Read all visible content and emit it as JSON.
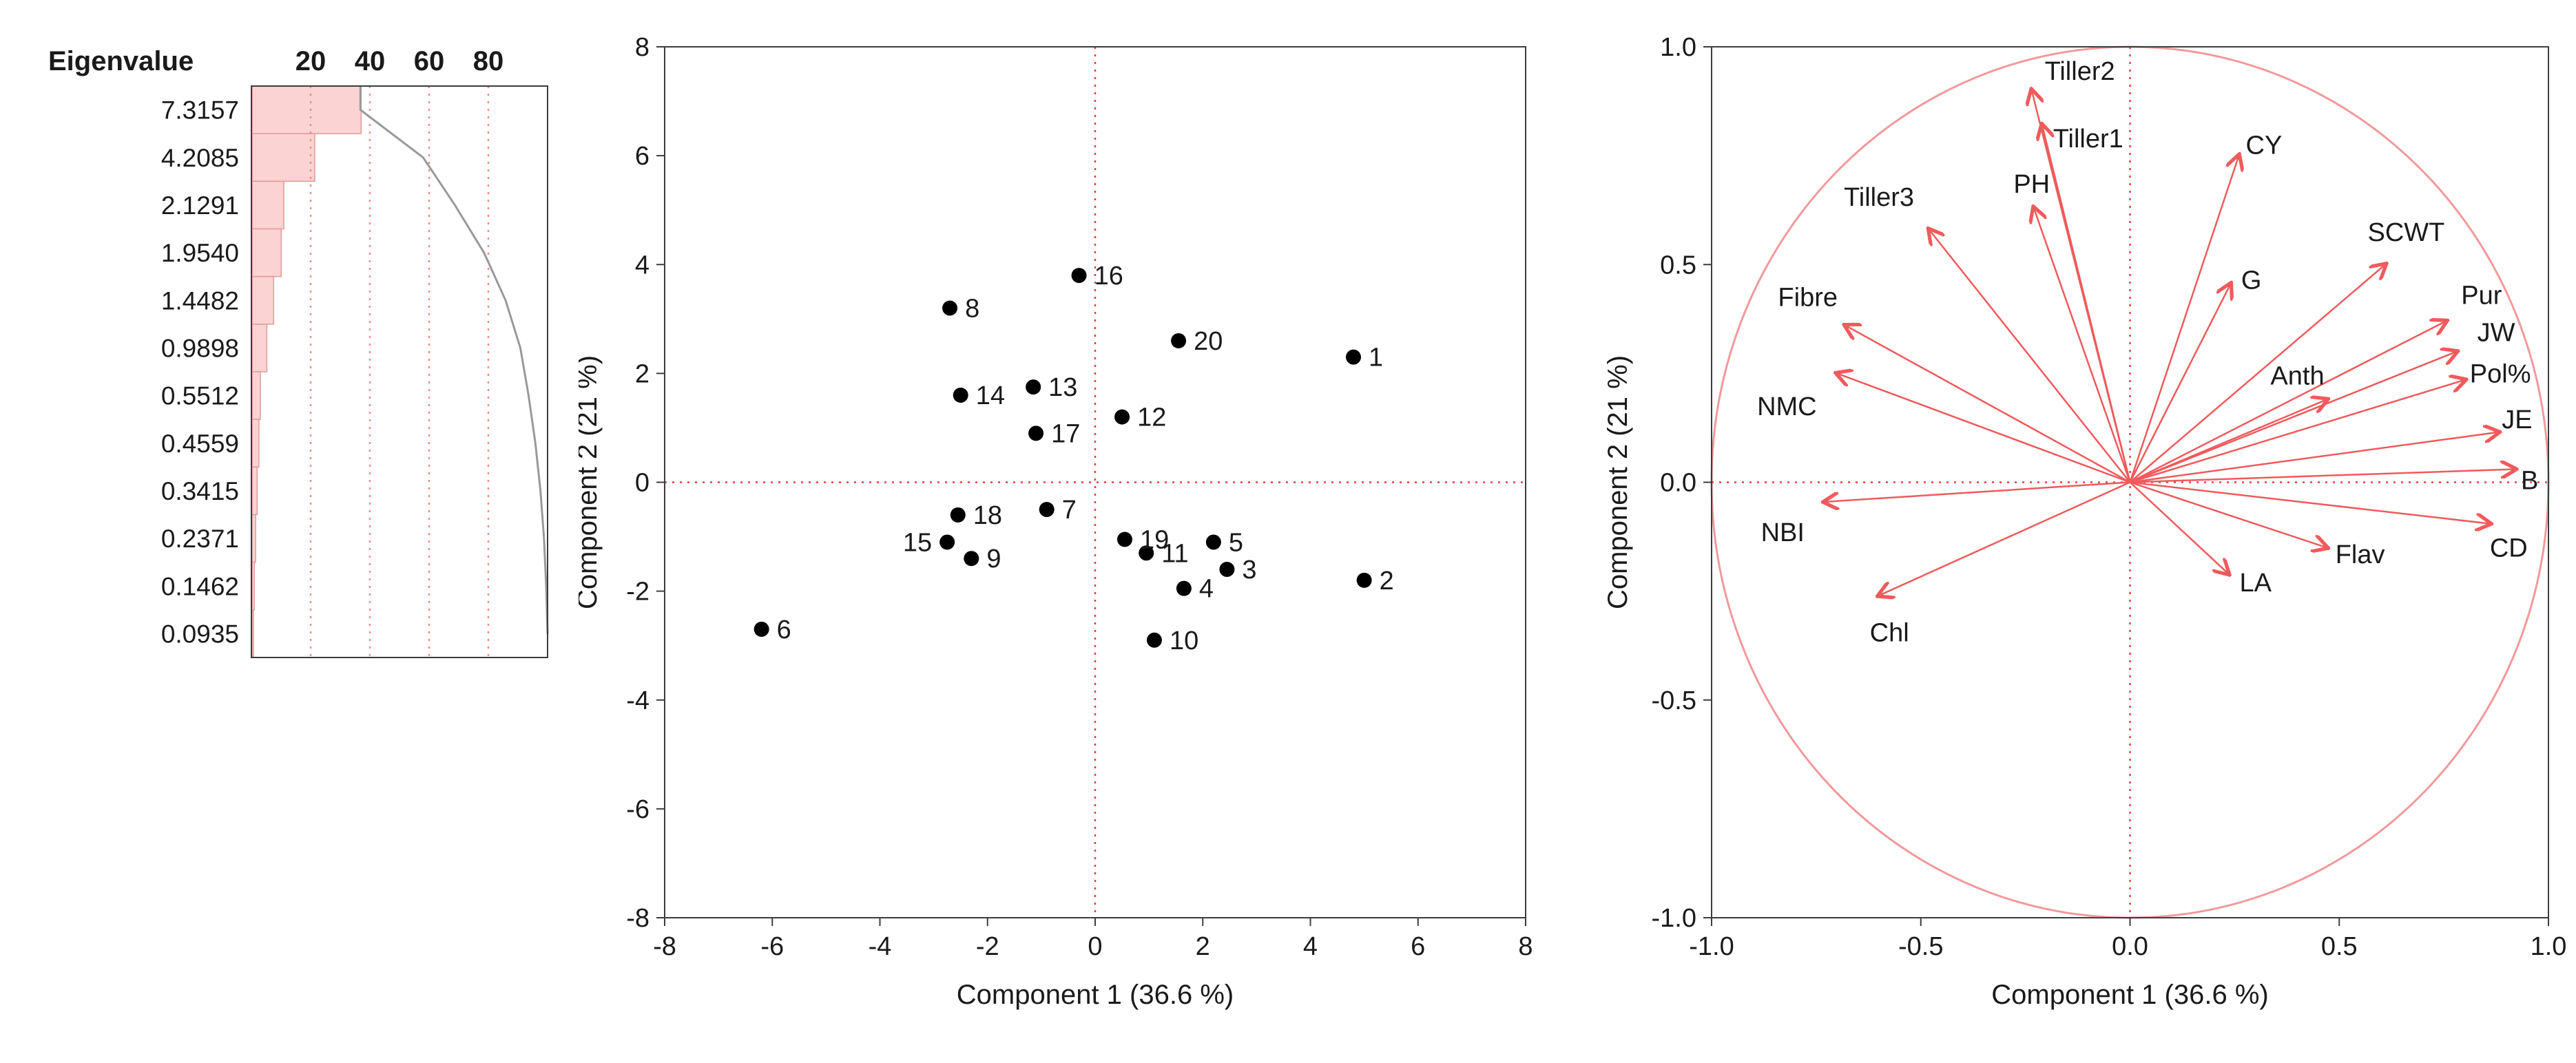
{
  "figure": {
    "background": "#ffffff",
    "frame_color": "#3c3c3c",
    "text_color": "#1a1a1a"
  },
  "chart_data": [
    {
      "id": "scree",
      "type": "bar",
      "title": "Eigenvalue",
      "orientation": "horizontal",
      "value_labels": [
        "7.3157",
        "4.2085",
        "2.1291",
        "1.9540",
        "1.4482",
        "0.9898",
        "0.5512",
        "0.4559",
        "0.3415",
        "0.2371",
        "0.1462",
        "0.0935"
      ],
      "values": [
        7.3157,
        4.2085,
        2.1291,
        1.954,
        1.4482,
        0.9898,
        0.5512,
        0.4559,
        0.3415,
        0.2371,
        0.1462,
        0.0935
      ],
      "percent_ticks": [
        20,
        40,
        60,
        80
      ],
      "percent_range": [
        0,
        100
      ],
      "cumulative_curve": true,
      "bar_color": "#fbd3d3",
      "bar_edge_color": "#e09a9a",
      "grid_color": "#ee8c8c",
      "curve_color": "#999999"
    },
    {
      "id": "scores",
      "type": "scatter",
      "xlabel": "Component 1  (36.6 %)",
      "ylabel": "Component 2  (21 %)",
      "xlim": [
        -8,
        8
      ],
      "ylim": [
        -8,
        8
      ],
      "xticks": [
        "-8",
        "-6",
        "-4",
        "-2",
        "0",
        "2",
        "4",
        "6",
        "8"
      ],
      "yticks": [
        "8",
        "6",
        "4",
        "2",
        "0",
        "-2",
        "-4",
        "-6",
        "-8"
      ],
      "grid": false,
      "refline_color": "#e73b47",
      "point_color": "#000000",
      "points": [
        {
          "label": "1",
          "x": 4.8,
          "y": 2.3,
          "side": "right"
        },
        {
          "label": "2",
          "x": 5.0,
          "y": -1.8,
          "side": "right"
        },
        {
          "label": "3",
          "x": 2.45,
          "y": -1.6,
          "side": "right"
        },
        {
          "label": "4",
          "x": 1.65,
          "y": -1.95,
          "side": "right"
        },
        {
          "label": "5",
          "x": 2.2,
          "y": -1.1,
          "side": "right"
        },
        {
          "label": "6",
          "x": -6.2,
          "y": -2.7,
          "side": "right"
        },
        {
          "label": "7",
          "x": -0.9,
          "y": -0.5,
          "side": "right"
        },
        {
          "label": "8",
          "x": -2.7,
          "y": 3.2,
          "side": "right"
        },
        {
          "label": "9",
          "x": -2.3,
          "y": -1.4,
          "side": "right"
        },
        {
          "label": "10",
          "x": 1.1,
          "y": -2.9,
          "side": "right"
        },
        {
          "label": "11",
          "x": 0.95,
          "y": -1.3,
          "side": "right"
        },
        {
          "label": "12",
          "x": 0.5,
          "y": 1.2,
          "side": "right"
        },
        {
          "label": "13",
          "x": -1.15,
          "y": 1.75,
          "side": "right"
        },
        {
          "label": "14",
          "x": -2.5,
          "y": 1.6,
          "side": "right"
        },
        {
          "label": "15",
          "x": -2.75,
          "y": -1.1,
          "side": "left"
        },
        {
          "label": "16",
          "x": -0.3,
          "y": 3.8,
          "side": "right"
        },
        {
          "label": "17",
          "x": -1.1,
          "y": 0.9,
          "side": "right"
        },
        {
          "label": "18",
          "x": -2.55,
          "y": -0.6,
          "side": "right"
        },
        {
          "label": "19",
          "x": 0.55,
          "y": -1.05,
          "side": "right"
        },
        {
          "label": "20",
          "x": 1.55,
          "y": 2.6,
          "side": "right"
        }
      ]
    },
    {
      "id": "loadings",
      "type": "scatter",
      "xlabel": "Component 1  (36.6 %)",
      "ylabel": "Component 2  (21 %)",
      "xlim": [
        -1,
        1
      ],
      "ylim": [
        -1,
        1
      ],
      "xticks": [
        "-1.0",
        "-0.5",
        "0.0",
        "0.5",
        "1.0"
      ],
      "yticks": [
        "1.0",
        "0.5",
        "0.0",
        "-0.5",
        "-1.0"
      ],
      "unit_circle": true,
      "circle_color": "#f2999b",
      "arrow_color": "#ef5a5c",
      "refline_color": "#e73b47",
      "label_color": "#262626",
      "vectors": [
        {
          "label": "Tiller2",
          "x": -0.235,
          "y": 0.9,
          "label_x": -0.12,
          "label_y": 0.945
        },
        {
          "label": "Tiller1",
          "x": -0.21,
          "y": 0.82,
          "label_x": -0.1,
          "label_y": 0.79
        },
        {
          "label": "CY",
          "x": 0.26,
          "y": 0.75,
          "label_x": 0.32,
          "label_y": 0.775
        },
        {
          "label": "PH",
          "x": -0.23,
          "y": 0.63,
          "label_x": -0.235,
          "label_y": 0.685
        },
        {
          "label": "Tiller3",
          "x": -0.48,
          "y": 0.58,
          "label_x": -0.6,
          "label_y": 0.655
        },
        {
          "label": "SCWT",
          "x": 0.61,
          "y": 0.5,
          "label_x": 0.66,
          "label_y": 0.575
        },
        {
          "label": "G",
          "x": 0.24,
          "y": 0.455,
          "label_x": 0.29,
          "label_y": 0.465
        },
        {
          "label": "Fibre",
          "x": -0.68,
          "y": 0.36,
          "label_x": -0.77,
          "label_y": 0.425
        },
        {
          "label": "Pur",
          "x": 0.755,
          "y": 0.37,
          "label_x": 0.84,
          "label_y": 0.43
        },
        {
          "label": "JW",
          "x": 0.78,
          "y": 0.3,
          "label_x": 0.875,
          "label_y": 0.345
        },
        {
          "label": "Anth",
          "x": 0.47,
          "y": 0.19,
          "label_x": 0.4,
          "label_y": 0.245
        },
        {
          "label": "Pol%",
          "x": 0.8,
          "y": 0.235,
          "label_x": 0.885,
          "label_y": 0.25
        },
        {
          "label": "NMC",
          "x": -0.7,
          "y": 0.25,
          "label_x": -0.82,
          "label_y": 0.175
        },
        {
          "label": "JE",
          "x": 0.88,
          "y": 0.115,
          "label_x": 0.925,
          "label_y": 0.145
        },
        {
          "label": "B",
          "x": 0.92,
          "y": 0.03,
          "label_x": 0.955,
          "label_y": 0.005
        },
        {
          "label": "NBI",
          "x": -0.73,
          "y": -0.045,
          "label_x": -0.83,
          "label_y": -0.115
        },
        {
          "label": "CD",
          "x": 0.86,
          "y": -0.095,
          "label_x": 0.905,
          "label_y": -0.15
        },
        {
          "label": "Flav",
          "x": 0.47,
          "y": -0.15,
          "label_x": 0.55,
          "label_y": -0.165
        },
        {
          "label": "LA",
          "x": 0.235,
          "y": -0.21,
          "label_x": 0.3,
          "label_y": -0.23
        },
        {
          "label": "Chl",
          "x": -0.6,
          "y": -0.26,
          "label_x": -0.575,
          "label_y": -0.345
        }
      ]
    }
  ]
}
